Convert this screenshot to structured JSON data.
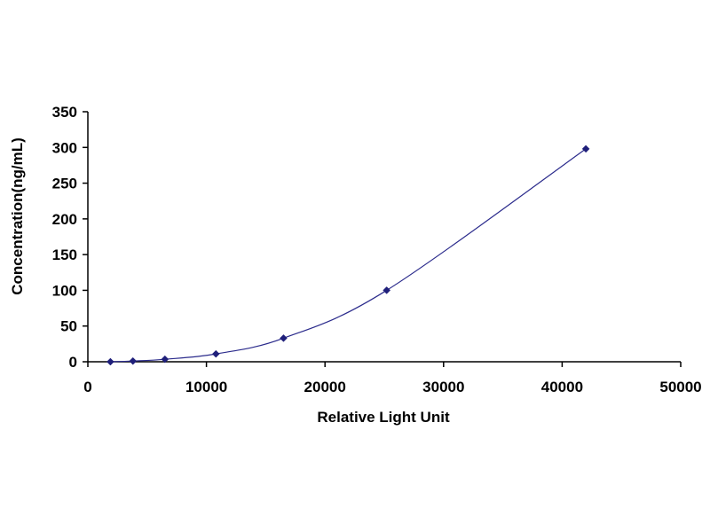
{
  "chart_data": {
    "type": "scatter",
    "title": "",
    "xlabel": "Relative Light Unit",
    "ylabel": "Concentration(ng/mL)",
    "xlim": [
      0,
      50000
    ],
    "ylim": [
      0,
      350
    ],
    "x_ticks": [
      "0",
      "10000",
      "20000",
      "30000",
      "40000",
      "50000"
    ],
    "y_ticks": [
      "0",
      "50",
      "100",
      "150",
      "200",
      "250",
      "300",
      "350"
    ],
    "grid": false,
    "legend": "none",
    "series": [
      {
        "x": [
          1900,
          3800,
          6500,
          10800,
          16500,
          25200,
          42000
        ],
        "y": [
          0,
          1,
          3.5,
          11,
          33,
          100,
          298
        ],
        "marker": "diamond",
        "fit_line": "smooth"
      }
    ],
    "colors": {
      "marker": "#1f1f7a",
      "line": "#2b2b8c",
      "axis": "#000000"
    }
  }
}
